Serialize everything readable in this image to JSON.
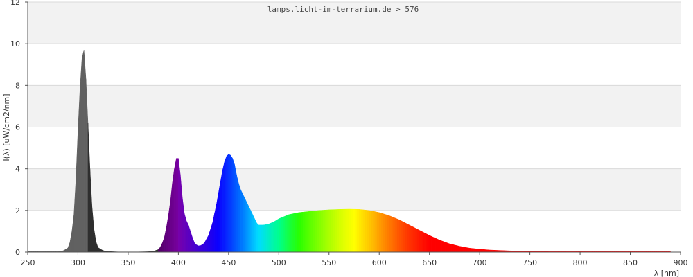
{
  "chart_data": {
    "type": "area",
    "title": "lamps.licht-im-terrarium.de > 576",
    "xlabel": "λ [nm]",
    "ylabel": "I(λ)  [uW/cm2/nm]",
    "xlim": [
      250,
      900
    ],
    "ylim": [
      0,
      12
    ],
    "x_ticks": [
      250,
      300,
      350,
      400,
      450,
      500,
      550,
      600,
      650,
      700,
      750,
      800,
      850,
      900
    ],
    "y_ticks": [
      0,
      2,
      4,
      6,
      8,
      10,
      12
    ],
    "grid": "horizontal bands",
    "band_colors": [
      "#f2f2f2",
      "#ffffff"
    ],
    "series": [
      {
        "x": [
          250,
          280,
          285,
          290,
          293,
          296,
          298,
          300,
          302,
          304,
          305,
          306,
          307,
          308,
          310,
          312,
          314,
          316,
          318,
          320,
          325,
          330,
          340,
          350,
          360,
          370,
          375,
          380,
          383,
          386,
          389,
          392,
          394,
          396,
          398,
          399,
          400,
          401,
          402,
          403,
          404,
          406,
          408,
          410,
          412,
          414,
          416,
          418,
          420,
          423,
          426,
          430,
          434,
          438,
          442,
          445,
          448,
          450,
          452,
          454,
          455,
          456,
          457,
          458,
          460,
          462,
          464,
          466,
          468,
          470,
          473,
          476,
          478,
          480,
          485,
          490,
          495,
          500,
          505,
          510,
          520,
          530,
          540,
          550,
          560,
          570,
          580,
          590,
          600,
          610,
          620,
          630,
          640,
          650,
          660,
          670,
          680,
          690,
          700,
          710,
          720,
          730,
          740,
          750,
          760,
          770,
          780,
          790,
          800,
          820,
          840,
          860,
          880,
          890
        ],
        "y": [
          0.03,
          0.03,
          0.05,
          0.2,
          0.6,
          1.8,
          3.5,
          5.8,
          7.8,
          9.3,
          9.85,
          9.7,
          9.2,
          8.3,
          6.2,
          4.0,
          2.2,
          1.1,
          0.5,
          0.22,
          0.07,
          0.03,
          0.01,
          0.01,
          0.01,
          0.02,
          0.04,
          0.12,
          0.3,
          0.7,
          1.4,
          2.4,
          3.3,
          4.0,
          4.5,
          4.6,
          4.5,
          4.2,
          3.7,
          3.2,
          2.6,
          1.85,
          1.5,
          1.3,
          1.0,
          0.7,
          0.45,
          0.35,
          0.3,
          0.32,
          0.45,
          0.8,
          1.4,
          2.3,
          3.4,
          4.2,
          4.6,
          4.7,
          4.65,
          4.5,
          4.35,
          4.2,
          4.0,
          3.7,
          3.3,
          3.0,
          2.8,
          2.6,
          2.4,
          2.2,
          1.9,
          1.6,
          1.4,
          1.3,
          1.3,
          1.35,
          1.45,
          1.6,
          1.7,
          1.8,
          1.9,
          1.95,
          2.0,
          2.03,
          2.05,
          2.06,
          2.05,
          2.0,
          1.9,
          1.75,
          1.55,
          1.3,
          1.05,
          0.8,
          0.58,
          0.4,
          0.28,
          0.19,
          0.14,
          0.1,
          0.08,
          0.06,
          0.05,
          0.04,
          0.04,
          0.03,
          0.03,
          0.03,
          0.03,
          0.03,
          0.03,
          0.03,
          0.03,
          0.03
        ]
      }
    ]
  }
}
